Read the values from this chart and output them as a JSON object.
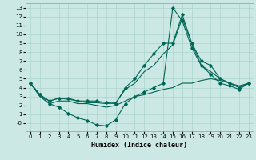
{
  "xlabel": "Humidex (Indice chaleur)",
  "bg_color": "#cce8e4",
  "grid_color": "#aad4cc",
  "line_color": "#006655",
  "xlim": [
    -0.5,
    23.5
  ],
  "ylim": [
    -0.9,
    13.5
  ],
  "xticks": [
    0,
    1,
    2,
    3,
    4,
    5,
    6,
    7,
    8,
    9,
    10,
    11,
    12,
    13,
    14,
    15,
    16,
    17,
    18,
    19,
    20,
    21,
    22,
    23
  ],
  "yticks": [
    0,
    1,
    2,
    3,
    4,
    5,
    6,
    7,
    8,
    9,
    10,
    11,
    12,
    13
  ],
  "ytick_labels": [
    "-0",
    "1",
    "2",
    "3",
    "4",
    "5",
    "6",
    "7",
    "8",
    "9",
    "10",
    "11",
    "12",
    "13"
  ],
  "line1_x": [
    0,
    1,
    2,
    3,
    4,
    5,
    6,
    7,
    8,
    9,
    10,
    11,
    12,
    13,
    14,
    15,
    16,
    17,
    18,
    19,
    20,
    21,
    22,
    23
  ],
  "line1_y": [
    4.5,
    3.2,
    2.5,
    2.8,
    2.8,
    2.5,
    2.5,
    2.5,
    2.3,
    2.2,
    4.0,
    5.0,
    6.5,
    7.8,
    9.0,
    9.0,
    12.2,
    9.0,
    7.0,
    6.5,
    5.0,
    4.5,
    4.0,
    4.5
  ],
  "line2_x": [
    0,
    1,
    2,
    3,
    4,
    5,
    6,
    7,
    8,
    9,
    10,
    11,
    12,
    13,
    14,
    15,
    16,
    17,
    18,
    19,
    20,
    21,
    22,
    23
  ],
  "line2_y": [
    4.5,
    3.2,
    2.2,
    1.8,
    1.1,
    0.6,
    0.3,
    -0.2,
    -0.3,
    0.4,
    2.2,
    3.0,
    3.5,
    4.0,
    4.5,
    13.0,
    11.5,
    8.5,
    6.5,
    5.5,
    4.5,
    4.2,
    3.8,
    4.5
  ],
  "line3_x": [
    0,
    1,
    2,
    3,
    4,
    5,
    6,
    7,
    8,
    9,
    10,
    11,
    12,
    13,
    14,
    15,
    16,
    17,
    18,
    19,
    20,
    21,
    22,
    23
  ],
  "line3_y": [
    4.5,
    3.2,
    2.5,
    2.8,
    2.7,
    2.5,
    2.3,
    2.3,
    2.2,
    2.3,
    3.8,
    4.5,
    5.8,
    6.5,
    7.8,
    8.8,
    11.8,
    9.0,
    6.5,
    5.8,
    5.0,
    4.5,
    4.0,
    4.5
  ],
  "line4_x": [
    0,
    1,
    2,
    3,
    4,
    5,
    6,
    7,
    8,
    9,
    10,
    11,
    12,
    13,
    14,
    15,
    16,
    17,
    18,
    19,
    20,
    21,
    22,
    23
  ],
  "line4_y": [
    4.5,
    3.0,
    2.2,
    2.5,
    2.5,
    2.2,
    2.2,
    2.0,
    1.8,
    2.0,
    2.5,
    3.0,
    3.2,
    3.5,
    3.8,
    4.0,
    4.5,
    4.5,
    4.8,
    5.0,
    4.8,
    4.5,
    4.2,
    4.5
  ]
}
